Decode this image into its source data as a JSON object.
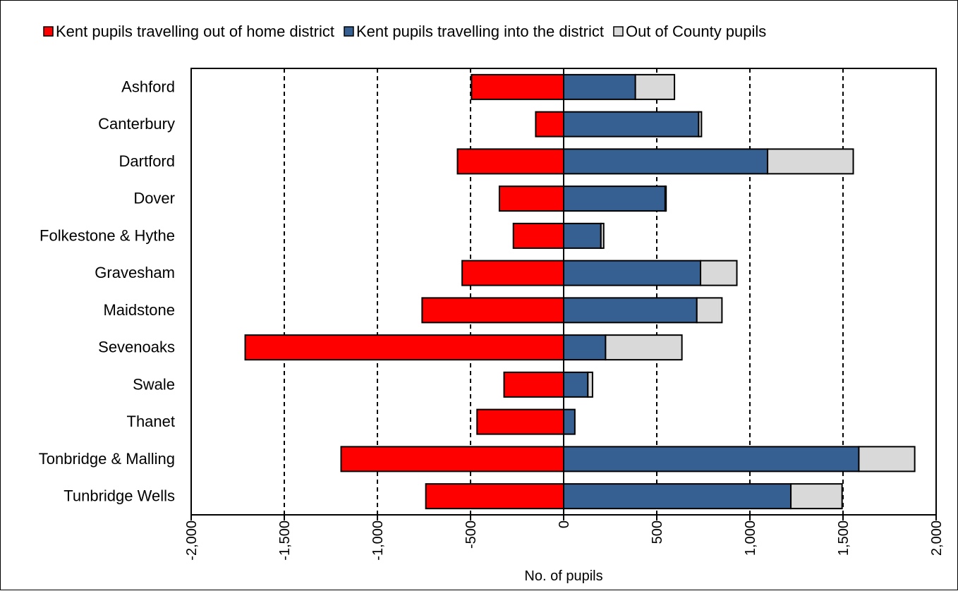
{
  "chart_data": {
    "type": "bar",
    "orientation": "horizontal",
    "stacked": true,
    "xlabel": "No. of pupils",
    "ylabel": "",
    "xlim": [
      -2000,
      2000
    ],
    "xticks": [
      -2000,
      -1500,
      -1000,
      -500,
      0,
      500,
      1000,
      1500,
      2000
    ],
    "xtick_labels": [
      "-2,000",
      "-1,500",
      "-1,000",
      "-500",
      "0",
      "500",
      "1,000",
      "1,500",
      "2,000"
    ],
    "grid": "vertical dashed",
    "legend_position": "top",
    "categories": [
      "Ashford",
      "Canterbury",
      "Dartford",
      "Dover",
      "Folkestone & Hythe",
      "Gravesham",
      "Maidstone",
      "Sevenoaks",
      "Swale",
      "Thanet",
      "Tonbridge & Malling",
      "Tunbridge Wells"
    ],
    "series": [
      {
        "name": "Kent pupils travelling out of home district",
        "color": "#ff0000",
        "values": [
          -495,
          -150,
          -570,
          -345,
          -270,
          -545,
          -760,
          -1710,
          -320,
          -465,
          -1195,
          -740
        ]
      },
      {
        "name": "Kent pupils travelling into the district",
        "color": "#376092",
        "values": [
          385,
          725,
          1095,
          545,
          200,
          735,
          715,
          225,
          130,
          60,
          1585,
          1220
        ]
      },
      {
        "name": "Out of County pupils",
        "color": "#d9d9d9",
        "values": [
          210,
          15,
          460,
          5,
          15,
          195,
          135,
          410,
          25,
          0,
          300,
          275
        ]
      }
    ]
  }
}
